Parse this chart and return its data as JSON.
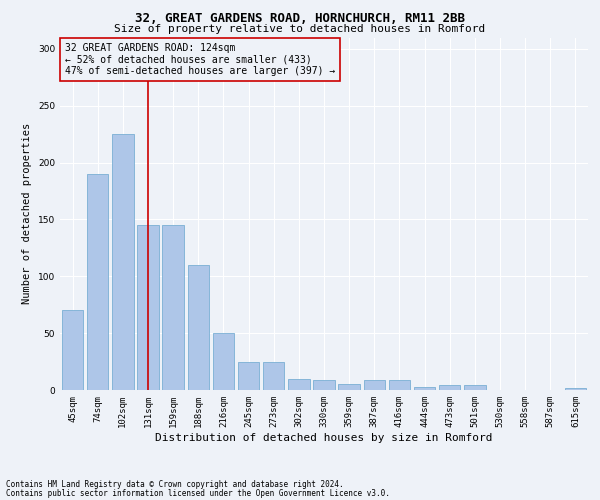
{
  "title1": "32, GREAT GARDENS ROAD, HORNCHURCH, RM11 2BB",
  "title2": "Size of property relative to detached houses in Romford",
  "xlabel": "Distribution of detached houses by size in Romford",
  "ylabel": "Number of detached properties",
  "categories": [
    "45sqm",
    "74sqm",
    "102sqm",
    "131sqm",
    "159sqm",
    "188sqm",
    "216sqm",
    "245sqm",
    "273sqm",
    "302sqm",
    "330sqm",
    "359sqm",
    "387sqm",
    "416sqm",
    "444sqm",
    "473sqm",
    "501sqm",
    "530sqm",
    "558sqm",
    "587sqm",
    "615sqm"
  ],
  "values": [
    70,
    190,
    225,
    145,
    145,
    110,
    50,
    25,
    25,
    10,
    9,
    5,
    9,
    9,
    3,
    4,
    4,
    0,
    0,
    0,
    2
  ],
  "bar_color": "#aec6e8",
  "bar_edgecolor": "#7aafd4",
  "vline_x_index": 3,
  "vline_color": "#cc0000",
  "ylim": [
    0,
    310
  ],
  "yticks": [
    0,
    50,
    100,
    150,
    200,
    250,
    300
  ],
  "annotation_text": "32 GREAT GARDENS ROAD: 124sqm\n← 52% of detached houses are smaller (433)\n47% of semi-detached houses are larger (397) →",
  "annotation_box_edgecolor": "#cc0000",
  "footer1": "Contains HM Land Registry data © Crown copyright and database right 2024.",
  "footer2": "Contains public sector information licensed under the Open Government Licence v3.0.",
  "bg_color": "#eef2f8",
  "grid_color": "#ffffff",
  "title1_fontsize": 9,
  "title2_fontsize": 8,
  "xlabel_fontsize": 8,
  "ylabel_fontsize": 7.5,
  "tick_fontsize": 6.5,
  "annot_fontsize": 7,
  "footer_fontsize": 5.5
}
